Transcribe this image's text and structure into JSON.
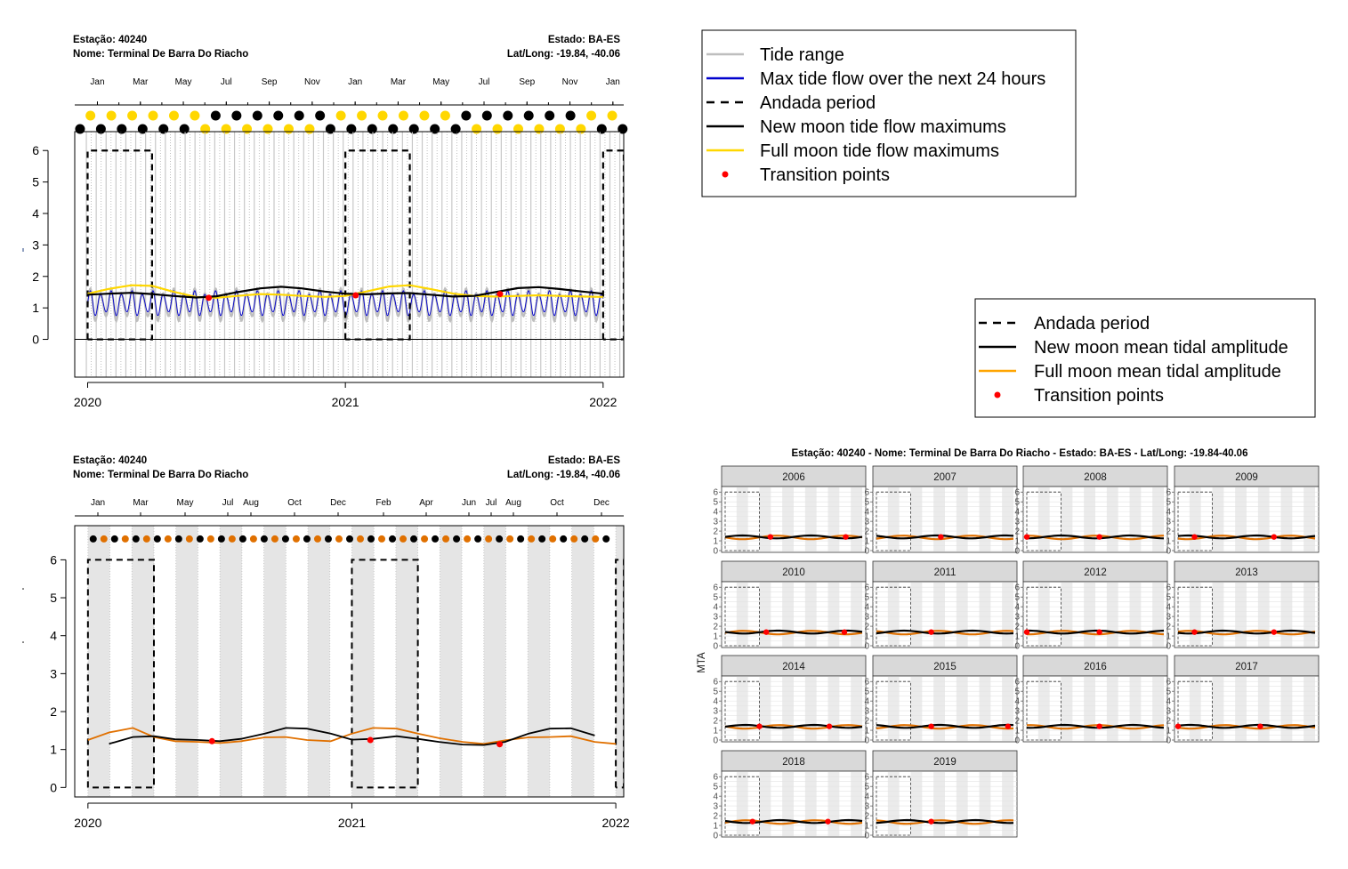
{
  "colors": {
    "tide_range": "#bebebe",
    "max_flow": "#0000cd",
    "new_moon": "#000000",
    "full_moon_top": "#ffd700",
    "full_moon_bottom": "#e07000",
    "transition": "#ff0000",
    "grid_band": "#e5e5e5",
    "strip_bg": "#d9d9d9"
  },
  "panel_top_left": {
    "header": {
      "station": "Estação:  40240",
      "name": "Nome:  Terminal De Barra Do Riacho",
      "state": "Estado: BA-ES",
      "latlong": "Lat/Long: -19.84, -40.06"
    },
    "month_labels": [
      "Jan",
      "Mar",
      "May",
      "Jul",
      "Sep",
      "Nov",
      "Jan",
      "Mar",
      "May",
      "Jul",
      "Sep",
      "Nov",
      "Jan"
    ]
  },
  "panel_bottom_left": {
    "header": {
      "station": "Estação:  40240",
      "name": "Nome:  Terminal De Barra Do Riacho",
      "state": "Estado: BA-ES",
      "latlong": "Lat/Long: -19.84, -40.06"
    },
    "month_labels": [
      "Jan",
      "Mar",
      "May",
      "Jul",
      "Aug",
      "Oct",
      "Dec",
      "Feb",
      "Apr",
      "Jun",
      "Jul",
      "Aug",
      "Oct",
      "Dec"
    ]
  },
  "legend_top": {
    "items": [
      {
        "label": "Tide range",
        "symbol": "line",
        "color": "#bebebe"
      },
      {
        "label": "Max tide flow over the next 24 hours",
        "symbol": "line",
        "color": "#0000cd"
      },
      {
        "label": "Andada period",
        "symbol": "dashed",
        "color": "#000000"
      },
      {
        "label": "New moon tide flow maximums",
        "symbol": "line",
        "color": "#000000"
      },
      {
        "label": "Full moon tide flow maximums",
        "symbol": "line",
        "color": "#ffd700"
      },
      {
        "label": "Transition points",
        "symbol": "dot",
        "color": "#ff0000"
      }
    ]
  },
  "legend_bottom": {
    "items": [
      {
        "label": "Andada period",
        "symbol": "dashed",
        "color": "#000000"
      },
      {
        "label": "New moon mean tidal amplitude",
        "symbol": "line",
        "color": "#000000"
      },
      {
        "label": "Full moon mean tidal amplitude",
        "symbol": "line",
        "color": "#ffa500"
      },
      {
        "label": "Transition points",
        "symbol": "dot",
        "color": "#ff0000"
      }
    ]
  },
  "facet_title": "Estação:  40240   -   Nome:  Terminal De Barra Do Riacho   -   Estado: BA-ES   -   Lat/Long: -19.84-40.06",
  "facet_ylabel": "MTA",
  "chart_data": [
    {
      "type": "line",
      "x_ticks": [
        2020,
        2021,
        2022
      ],
      "xlim": [
        2019.95,
        2022.08
      ],
      "ylim": [
        -1.2,
        6.6
      ],
      "y_ticks": [
        0,
        1,
        2,
        3,
        4,
        5,
        6
      ],
      "andada_periods": [
        [
          2020.0,
          2020.25
        ],
        [
          2021.0,
          2021.25
        ],
        [
          2022.0,
          2022.08
        ]
      ],
      "andada_height": 6,
      "series": [
        {
          "name": "New moon tide flow maximums",
          "x": [
            2020.0,
            2020.08,
            2020.17,
            2020.25,
            2020.33,
            2020.42,
            2020.5,
            2020.58,
            2020.67,
            2020.75,
            2020.83,
            2020.92,
            2021.0,
            2021.08,
            2021.17,
            2021.25,
            2021.33,
            2021.42,
            2021.5,
            2021.58,
            2021.67,
            2021.75,
            2021.83,
            2021.92,
            2022.0
          ],
          "y": [
            1.42,
            1.45,
            1.48,
            1.44,
            1.38,
            1.33,
            1.37,
            1.5,
            1.62,
            1.67,
            1.62,
            1.52,
            1.45,
            1.43,
            1.46,
            1.47,
            1.42,
            1.36,
            1.38,
            1.5,
            1.63,
            1.66,
            1.6,
            1.52,
            1.45
          ]
        },
        {
          "name": "Full moon tide flow maximums",
          "x": [
            2020.0,
            2020.08,
            2020.17,
            2020.25,
            2020.33,
            2020.42,
            2020.5,
            2020.58,
            2020.67,
            2020.75,
            2020.83,
            2020.92,
            2021.0,
            2021.08,
            2021.17,
            2021.25,
            2021.33,
            2021.42,
            2021.5,
            2021.58,
            2021.67,
            2021.75,
            2021.83,
            2021.92,
            2022.0
          ],
          "y": [
            1.45,
            1.6,
            1.72,
            1.7,
            1.52,
            1.35,
            1.32,
            1.38,
            1.44,
            1.42,
            1.38,
            1.35,
            1.38,
            1.52,
            1.68,
            1.72,
            1.6,
            1.45,
            1.38,
            1.36,
            1.38,
            1.4,
            1.38,
            1.36,
            1.35
          ]
        },
        {
          "name": "Max tide flow over the next 24 hours",
          "amplitude": [
            0.7,
            1.6
          ],
          "cycles_per_year": 24.7
        }
      ],
      "transition_points": [
        {
          "x": 2020.47,
          "y": 1.32
        },
        {
          "x": 2021.04,
          "y": 1.4
        },
        {
          "x": 2021.6,
          "y": 1.44
        }
      ],
      "moon_phases": {
        "per_year": 24.7,
        "upper_y": 6.55,
        "lower_y": 6.2
      }
    },
    {
      "type": "line",
      "x_ticks": [
        2020,
        2021,
        2022
      ],
      "xlim": [
        2019.95,
        2022.03
      ],
      "ylim": [
        -0.25,
        6.9
      ],
      "y_ticks": [
        0,
        1,
        2,
        3,
        4,
        5,
        6
      ],
      "andada_periods": [
        [
          2020.0,
          2020.25
        ],
        [
          2021.0,
          2021.25
        ],
        [
          2022.0,
          2022.03
        ]
      ],
      "andada_height": 6,
      "series": [
        {
          "name": "New moon mean tidal amplitude",
          "x": [
            2020.08,
            2020.17,
            2020.25,
            2020.33,
            2020.42,
            2020.5,
            2020.58,
            2020.67,
            2020.75,
            2020.83,
            2020.92,
            2021.0,
            2021.08,
            2021.17,
            2021.25,
            2021.33,
            2021.42,
            2021.5,
            2021.58,
            2021.67,
            2021.75,
            2021.83,
            2021.92
          ],
          "y": [
            1.15,
            1.33,
            1.35,
            1.27,
            1.25,
            1.22,
            1.28,
            1.42,
            1.57,
            1.55,
            1.42,
            1.26,
            1.28,
            1.35,
            1.28,
            1.2,
            1.13,
            1.12,
            1.2,
            1.42,
            1.55,
            1.56,
            1.37
          ]
        },
        {
          "name": "Full moon mean tidal amplitude",
          "x": [
            2020.0,
            2020.08,
            2020.17,
            2020.25,
            2020.33,
            2020.42,
            2020.5,
            2020.58,
            2020.67,
            2020.75,
            2020.83,
            2020.92,
            2021.0,
            2021.08,
            2021.17,
            2021.25,
            2021.33,
            2021.42,
            2021.5,
            2021.58,
            2021.67,
            2021.75,
            2021.83,
            2021.92,
            2022.0
          ],
          "y": [
            1.25,
            1.45,
            1.57,
            1.33,
            1.22,
            1.2,
            1.17,
            1.22,
            1.32,
            1.33,
            1.25,
            1.22,
            1.42,
            1.57,
            1.55,
            1.42,
            1.3,
            1.2,
            1.15,
            1.24,
            1.32,
            1.33,
            1.35,
            1.2,
            1.15
          ]
        }
      ],
      "transition_points": [
        {
          "x": 2020.47,
          "y": 1.22
        },
        {
          "x": 2021.07,
          "y": 1.25
        },
        {
          "x": 2021.56,
          "y": 1.14
        }
      ],
      "moon_phases": {
        "per_year": 24.7,
        "y": 6.55
      }
    },
    {
      "type": "line",
      "facets": [
        "2006",
        "2007",
        "2008",
        "2009",
        "2010",
        "2011",
        "2012",
        "2013",
        "2014",
        "2015",
        "2016",
        "2017",
        "2018",
        "2019"
      ],
      "y_ticks": [
        0,
        1,
        2,
        3,
        4,
        5,
        6
      ],
      "ylim": [
        0,
        6.2
      ],
      "xlim": [
        0,
        1
      ],
      "andada_period": [
        0.0,
        0.25
      ],
      "new_moon_mean": 1.4,
      "full_moon_mean": 1.35,
      "transition_points": {
        "2006": [
          0.33,
          0.88
        ],
        "2007": [
          0.47
        ],
        "2008": [
          0.0,
          0.53
        ],
        "2009": [
          0.12,
          0.7
        ],
        "2010": [
          0.3,
          0.87
        ],
        "2011": [
          0.4
        ],
        "2012": [
          0.0,
          0.53
        ],
        "2013": [
          0.12,
          0.7
        ],
        "2014": [
          0.25,
          0.76
        ],
        "2015": [
          0.4,
          0.96
        ],
        "2016": [
          0.53
        ],
        "2017": [
          0.0,
          0.6
        ],
        "2018": [
          0.2,
          0.75
        ],
        "2019": [
          0.4
        ]
      }
    }
  ]
}
